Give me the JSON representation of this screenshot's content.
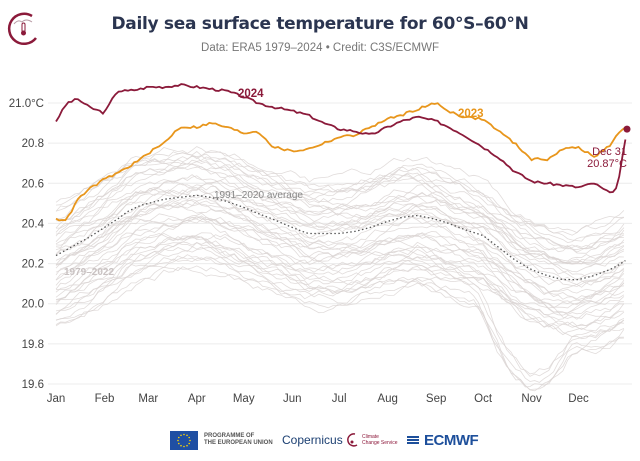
{
  "header": {
    "title": "Daily sea surface temperature for 60°S–60°N",
    "subtitle": "Data: ERA5 1979–2024 • Credit: C3S/ECMWF",
    "logo_icon": "climate-thermometer-icon"
  },
  "chart_data": {
    "type": "line",
    "title": "Daily sea surface temperature for 60°S–60°N",
    "xlabel": "",
    "ylabel": "",
    "ylim": [
      19.6,
      21.1
    ],
    "yticks": [
      19.6,
      19.8,
      20.0,
      20.2,
      20.4,
      20.6,
      20.8,
      21.0
    ],
    "ytick_labels": [
      "19.6",
      "19.8",
      "20.0",
      "20.2",
      "20.4",
      "20.6",
      "20.8",
      "21.0°C"
    ],
    "categories": [
      "Jan",
      "Feb",
      "Mar",
      "Apr",
      "May",
      "Jun",
      "Jul",
      "Aug",
      "Sep",
      "Oct",
      "Nov",
      "Dec"
    ],
    "grid": true,
    "x_days": [
      1,
      8,
      15,
      22,
      32,
      40,
      47,
      55,
      60,
      70,
      80,
      91,
      100,
      110,
      121,
      130,
      140,
      152,
      162,
      172,
      182,
      192,
      202,
      213,
      222,
      232,
      244,
      252,
      262,
      274,
      284,
      294,
      305,
      315,
      325,
      335,
      345,
      355,
      360,
      366
    ],
    "series": [
      {
        "name": "2024",
        "color": "#8b1a3a",
        "label_day": 118,
        "values": [
          20.91,
          21.0,
          21.02,
          20.98,
          20.95,
          21.06,
          21.06,
          21.07,
          21.08,
          21.08,
          21.09,
          21.08,
          21.07,
          21.06,
          21.03,
          21.0,
          20.98,
          20.96,
          20.94,
          20.9,
          20.87,
          20.86,
          20.84,
          20.88,
          20.91,
          20.93,
          20.91,
          20.88,
          20.84,
          20.78,
          20.73,
          20.66,
          20.61,
          20.6,
          20.59,
          20.58,
          20.6,
          20.55,
          20.58,
          20.87
        ]
      },
      {
        "name": "2023",
        "color": "#e8961c",
        "label_day": 268,
        "values": [
          20.42,
          20.42,
          20.52,
          20.57,
          20.62,
          20.65,
          20.68,
          20.72,
          20.75,
          20.8,
          20.88,
          20.88,
          20.9,
          20.88,
          20.85,
          20.86,
          20.78,
          20.76,
          20.77,
          20.8,
          20.83,
          20.84,
          20.88,
          20.92,
          20.94,
          20.97,
          21.0,
          20.96,
          20.93,
          20.92,
          20.86,
          20.8,
          20.72,
          20.72,
          20.77,
          20.78,
          20.73,
          20.79,
          20.84,
          20.89
        ]
      },
      {
        "name": "1991–2020 average",
        "color": "#555555",
        "style": "dotted",
        "label_day": 126,
        "values": [
          20.24,
          20.27,
          20.3,
          20.33,
          20.38,
          20.42,
          20.46,
          20.49,
          20.5,
          20.52,
          20.53,
          20.54,
          20.53,
          20.51,
          20.48,
          20.45,
          20.42,
          20.38,
          20.35,
          20.35,
          20.35,
          20.36,
          20.38,
          20.41,
          20.43,
          20.44,
          20.42,
          20.4,
          20.37,
          20.34,
          20.28,
          20.22,
          20.17,
          20.14,
          20.12,
          20.12,
          20.14,
          20.17,
          20.19,
          20.22
        ]
      }
    ],
    "background_series": {
      "name": "1979–2022",
      "color": "#d9d3d2",
      "count": 44,
      "note": "individual years shown as faint grey lines, ranging roughly 19.6–20.95"
    },
    "annotations": [
      {
        "text": "2024",
        "series": "2024"
      },
      {
        "text": "2023",
        "series": "2023"
      },
      {
        "text": "1991–2020 average",
        "series": "1991–2020 average"
      },
      {
        "text": "1979–2022",
        "series": "background"
      },
      {
        "text": "Dec 31",
        "series": "2024"
      },
      {
        "text": "20.87°C",
        "series": "2024"
      }
    ]
  },
  "labels": {
    "s2024": "2024",
    "s2023": "2023",
    "avg": "1991–2020 average",
    "hist": "1979–2022",
    "end_date": "Dec 31",
    "end_value": "20.87°C"
  },
  "footer": {
    "eu_line1": "PROGRAMME OF",
    "eu_line2": "THE EUROPEAN UNION",
    "copernicus": "Copernicus",
    "c3s_line1": "Climate",
    "c3s_line2": "Change Service",
    "ecmwf": "ECMWF"
  }
}
